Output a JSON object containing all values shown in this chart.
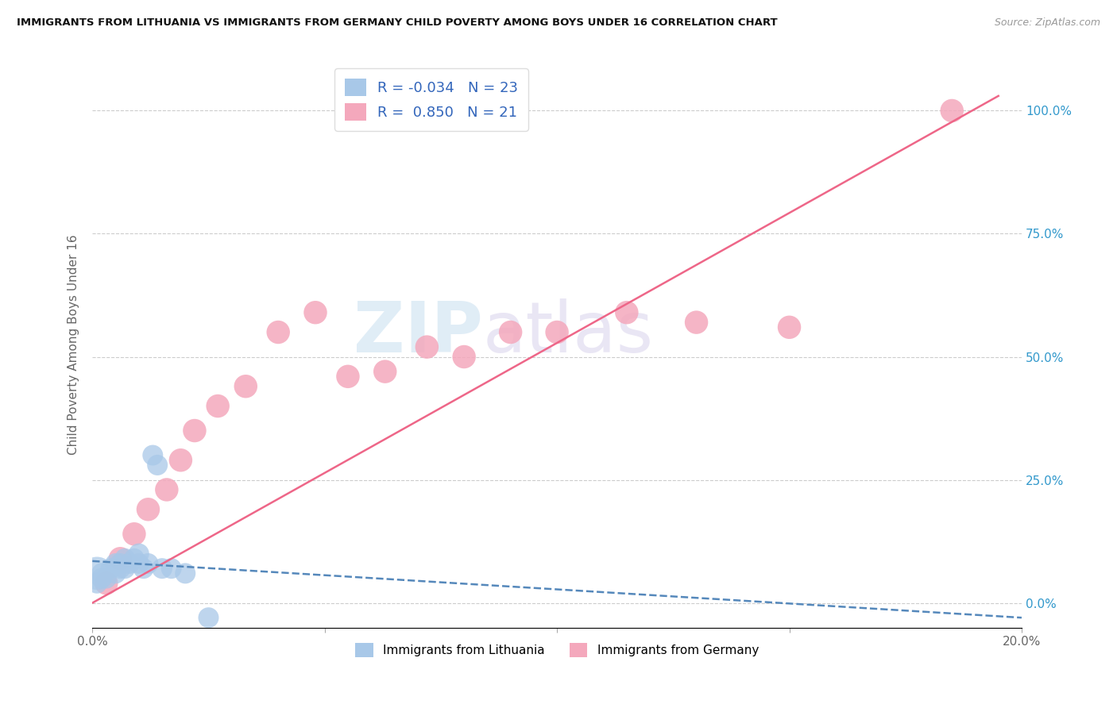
{
  "title": "IMMIGRANTS FROM LITHUANIA VS IMMIGRANTS FROM GERMANY CHILD POVERTY AMONG BOYS UNDER 16 CORRELATION CHART",
  "source": "Source: ZipAtlas.com",
  "ylabel": "Child Poverty Among Boys Under 16",
  "xlim": [
    0.0,
    0.2
  ],
  "ylim": [
    -0.05,
    1.1
  ],
  "legend_R1": "-0.034",
  "legend_N1": "23",
  "legend_R2": "0.850",
  "legend_N2": "21",
  "watermark_zip": "ZIP",
  "watermark_atlas": "atlas",
  "color_lithuania": "#a8c8e8",
  "color_germany": "#f4a8bc",
  "color_lithuania_line": "#5588bb",
  "color_germany_line": "#ee6688",
  "lithuania_x": [
    0.001,
    0.002,
    0.002,
    0.003,
    0.004,
    0.005,
    0.005,
    0.006,
    0.006,
    0.007,
    0.007,
    0.008,
    0.009,
    0.01,
    0.01,
    0.011,
    0.012,
    0.013,
    0.014,
    0.015,
    0.017,
    0.02,
    0.025
  ],
  "lithuania_y": [
    0.04,
    0.05,
    0.06,
    0.05,
    0.07,
    0.06,
    0.08,
    0.07,
    0.08,
    0.07,
    0.09,
    0.08,
    0.09,
    0.08,
    0.1,
    0.07,
    0.08,
    0.3,
    0.28,
    0.07,
    0.07,
    0.06,
    -0.03
  ],
  "germany_x": [
    0.003,
    0.006,
    0.009,
    0.012,
    0.016,
    0.019,
    0.022,
    0.027,
    0.033,
    0.04,
    0.048,
    0.055,
    0.063,
    0.072,
    0.08,
    0.09,
    0.1,
    0.115,
    0.13,
    0.15,
    0.185
  ],
  "germany_y": [
    0.04,
    0.09,
    0.14,
    0.19,
    0.23,
    0.29,
    0.35,
    0.4,
    0.44,
    0.55,
    0.59,
    0.46,
    0.47,
    0.52,
    0.5,
    0.55,
    0.55,
    0.59,
    0.57,
    0.56,
    1.0
  ],
  "lith_line_x": [
    0.0,
    0.2
  ],
  "lith_line_y": [
    0.085,
    -0.03
  ],
  "germ_line_x": [
    0.0,
    0.195
  ],
  "germ_line_y": [
    0.0,
    1.03
  ],
  "dot_size_lithuania": 350,
  "dot_size_germany": 450,
  "dot_size_lith_big": 900
}
